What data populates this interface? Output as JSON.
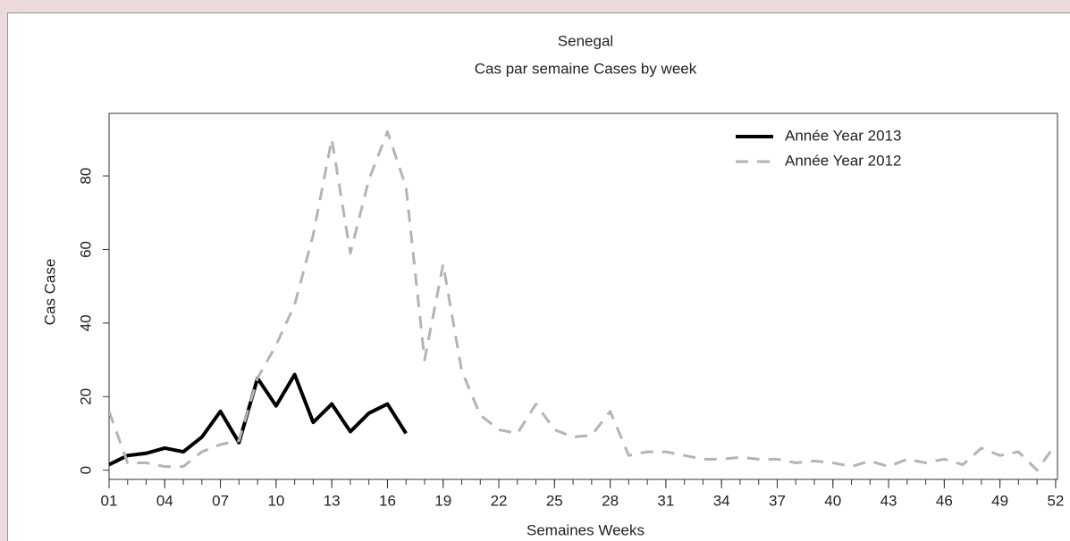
{
  "chart_data": {
    "type": "line",
    "title": "Senegal",
    "subtitle": "Cas par semaine Cases by week",
    "x_label": "Semaines Weeks",
    "y_label": "Cas Case",
    "x": [
      1,
      2,
      3,
      4,
      5,
      6,
      7,
      8,
      9,
      10,
      11,
      12,
      13,
      14,
      15,
      16,
      17,
      18,
      19,
      20,
      21,
      22,
      23,
      24,
      25,
      26,
      27,
      28,
      29,
      30,
      31,
      32,
      33,
      34,
      35,
      36,
      37,
      38,
      39,
      40,
      41,
      42,
      43,
      44,
      45,
      46,
      47,
      48,
      49,
      50,
      51,
      52
    ],
    "xlim": [
      1,
      52.1
    ],
    "ylim": [
      -2.5,
      97
    ],
    "xticks": [
      {
        "value": 1,
        "label": "01"
      },
      {
        "value": 4,
        "label": "04"
      },
      {
        "value": 7,
        "label": "07"
      },
      10,
      13,
      16,
      19,
      22,
      25,
      28,
      31,
      34,
      37,
      40,
      43,
      46,
      49,
      52
    ],
    "yticks": [
      0,
      20,
      40,
      60,
      80
    ],
    "legend": "top-right",
    "series": [
      {
        "name": "Année Year 2013",
        "color": "#000000",
        "dash": false,
        "values": [
          1.5,
          4,
          4.6,
          6,
          5,
          9,
          16,
          7.5,
          25,
          17.5,
          26,
          13,
          18,
          10.5,
          15.5,
          18,
          10,
          null,
          null,
          null,
          null,
          null,
          null,
          null,
          null,
          null,
          null,
          null,
          null,
          null,
          null,
          null,
          null,
          null,
          null,
          null,
          null,
          null,
          null,
          null,
          null,
          null,
          null,
          null,
          null,
          null,
          null,
          null,
          null,
          null,
          null,
          null
        ]
      },
      {
        "name": "Année Year 2012",
        "color": "#b4b4b4",
        "dash": true,
        "values": [
          16,
          2,
          2,
          1,
          1,
          5,
          7,
          8,
          25,
          34,
          45,
          64,
          90,
          59,
          79,
          92,
          77,
          30,
          56,
          27,
          15,
          11,
          10,
          18,
          11,
          9,
          9.5,
          16,
          4,
          5,
          5,
          4,
          3,
          3,
          3.5,
          3,
          3,
          2,
          2.5,
          2,
          1,
          2.5,
          1,
          3,
          2,
          3,
          1.5,
          6,
          4,
          5,
          0,
          7
        ]
      }
    ]
  }
}
